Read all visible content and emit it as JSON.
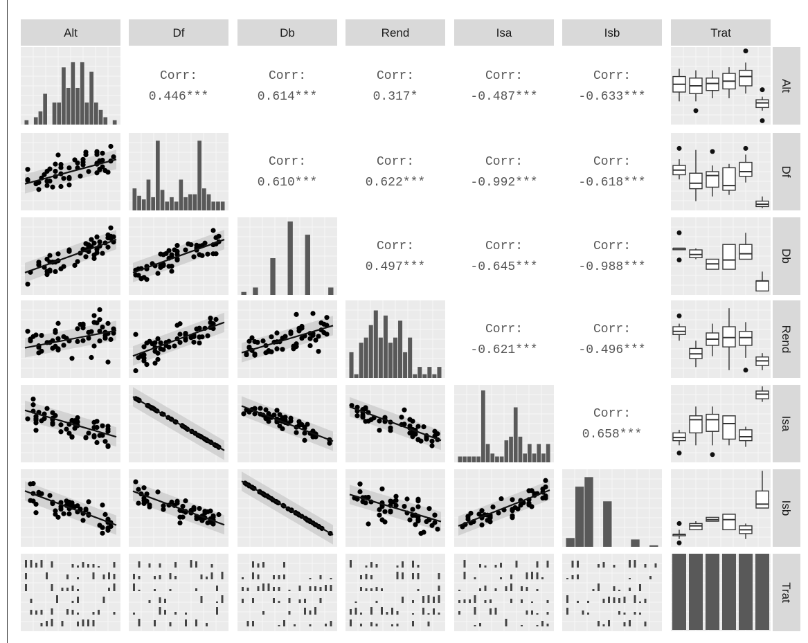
{
  "chart_data": {
    "type": "scatter",
    "layout": "pairs-matrix",
    "variables": [
      "Alt",
      "Df",
      "Db",
      "Rend",
      "Isa",
      "Isb",
      "Trat"
    ],
    "correlation_prefix": "Corr:",
    "correlations": [
      {
        "row": "Alt",
        "col": "Df",
        "value": "0.446***"
      },
      {
        "row": "Alt",
        "col": "Db",
        "value": "0.614***"
      },
      {
        "row": "Alt",
        "col": "Rend",
        "value": "0.317*"
      },
      {
        "row": "Alt",
        "col": "Isa",
        "value": "-0.487***"
      },
      {
        "row": "Alt",
        "col": "Isb",
        "value": "-0.633***"
      },
      {
        "row": "Df",
        "col": "Db",
        "value": "0.610***"
      },
      {
        "row": "Df",
        "col": "Rend",
        "value": "0.622***"
      },
      {
        "row": "Df",
        "col": "Isa",
        "value": "-0.992***"
      },
      {
        "row": "Df",
        "col": "Isb",
        "value": "-0.618***"
      },
      {
        "row": "Db",
        "col": "Rend",
        "value": "0.497***"
      },
      {
        "row": "Db",
        "col": "Isa",
        "value": "-0.645***"
      },
      {
        "row": "Db",
        "col": "Isb",
        "value": "-0.988***"
      },
      {
        "row": "Rend",
        "col": "Isa",
        "value": "-0.621***"
      },
      {
        "row": "Rend",
        "col": "Isb",
        "value": "-0.496***"
      },
      {
        "row": "Isa",
        "col": "Isb",
        "value": "0.658***"
      }
    ],
    "histograms": {
      "Alt": [
        0.06,
        0,
        0.1,
        0.18,
        0.42,
        0,
        0.3,
        0.3,
        0.78,
        0.5,
        0.85,
        0.5,
        0.85,
        0.3,
        0.72,
        0.3,
        0.2,
        0.1,
        0,
        0.06
      ],
      "Df": [
        0.3,
        0.2,
        0.15,
        0.42,
        0.18,
        0.95,
        0.28,
        0.12,
        0.18,
        0.12,
        0.42,
        0.18,
        0.22,
        0.22,
        0.95,
        0.3,
        0.22,
        0.12,
        0.12,
        0.12
      ],
      "Db": [
        0.04,
        0,
        0.1,
        0,
        0,
        0.5,
        0,
        0,
        1.0,
        0,
        0,
        0.82,
        0,
        0,
        0,
        0.1
      ],
      "Rend": [
        0.35,
        0.05,
        0.48,
        0.55,
        0.72,
        0.92,
        0.55,
        0.85,
        0.48,
        0.55,
        0.78,
        0.35,
        0.55,
        0.05,
        0.15,
        0.05,
        0.15,
        0.05,
        0.15
      ],
      "Isa": [
        0.08,
        0.08,
        0.08,
        0.08,
        0.08,
        0.98,
        0.25,
        0.12,
        0.08,
        0.08,
        0.3,
        0.35,
        0.75,
        0.35,
        0.12,
        0.25,
        0.12,
        0.25,
        0.12,
        0.25
      ],
      "Isb": [
        0.12,
        0.82,
        0.95,
        0,
        0.62,
        0,
        0,
        0.1,
        0,
        0.02
      ]
    },
    "scatter_panels": [
      {
        "row": "Df",
        "col": "Alt",
        "slope": 0.45
      },
      {
        "row": "Db",
        "col": "Alt",
        "slope": 0.61
      },
      {
        "row": "Db",
        "col": "Df",
        "slope": 0.61
      },
      {
        "row": "Rend",
        "col": "Alt",
        "slope": 0.32
      },
      {
        "row": "Rend",
        "col": "Df",
        "slope": 0.62
      },
      {
        "row": "Rend",
        "col": "Db",
        "slope": 0.5
      },
      {
        "row": "Isa",
        "col": "Alt",
        "slope": -0.49
      },
      {
        "row": "Isa",
        "col": "Df",
        "slope": -0.99
      },
      {
        "row": "Isa",
        "col": "Db",
        "slope": -0.65
      },
      {
        "row": "Isa",
        "col": "Rend",
        "slope": -0.62
      },
      {
        "row": "Isb",
        "col": "Alt",
        "slope": -0.63
      },
      {
        "row": "Isb",
        "col": "Df",
        "slope": -0.62
      },
      {
        "row": "Isb",
        "col": "Db",
        "slope": -0.99
      },
      {
        "row": "Isb",
        "col": "Rend",
        "slope": -0.5
      },
      {
        "row": "Isb",
        "col": "Isa",
        "slope": 0.66
      }
    ],
    "boxplots": {
      "Alt": [
        {
          "q1": 0.42,
          "med": 0.52,
          "q3": 0.62,
          "lo": 0.3,
          "hi": 0.72,
          "out": []
        },
        {
          "q1": 0.4,
          "med": 0.5,
          "q3": 0.6,
          "lo": 0.3,
          "hi": 0.7,
          "out": [
            0.18
          ]
        },
        {
          "q1": 0.44,
          "med": 0.53,
          "q3": 0.6,
          "lo": 0.34,
          "hi": 0.7,
          "out": []
        },
        {
          "q1": 0.46,
          "med": 0.56,
          "q3": 0.66,
          "lo": 0.34,
          "hi": 0.74,
          "out": []
        },
        {
          "q1": 0.5,
          "med": 0.62,
          "q3": 0.7,
          "lo": 0.4,
          "hi": 0.8,
          "out": [
            0.95
          ]
        },
        {
          "q1": 0.22,
          "med": 0.28,
          "q3": 0.32,
          "lo": 0.18,
          "hi": 0.36,
          "out": [
            0.45,
            0.05
          ]
        }
      ],
      "Df": [
        {
          "q1": 0.46,
          "med": 0.52,
          "q3": 0.58,
          "lo": 0.4,
          "hi": 0.66,
          "out": [
            0.8
          ]
        },
        {
          "q1": 0.28,
          "med": 0.35,
          "q3": 0.48,
          "lo": 0.12,
          "hi": 0.78,
          "out": []
        },
        {
          "q1": 0.3,
          "med": 0.45,
          "q3": 0.5,
          "lo": 0.18,
          "hi": 0.58,
          "out": [
            0.76
          ]
        },
        {
          "q1": 0.26,
          "med": 0.32,
          "q3": 0.55,
          "lo": 0.2,
          "hi": 0.6,
          "out": []
        },
        {
          "q1": 0.44,
          "med": 0.5,
          "q3": 0.62,
          "lo": 0.36,
          "hi": 0.72,
          "out": [
            0.8
          ]
        },
        {
          "q1": 0.05,
          "med": 0.08,
          "q3": 0.12,
          "lo": 0.03,
          "hi": 0.18,
          "out": []
        }
      ],
      "Db": [
        {
          "q1": 0.6,
          "med": 0.6,
          "q3": 0.6,
          "lo": 0.6,
          "hi": 0.6,
          "out": [
            0.8,
            0.45
          ]
        },
        {
          "q1": 0.48,
          "med": 0.52,
          "q3": 0.58,
          "lo": 0.46,
          "hi": 0.6,
          "out": []
        },
        {
          "q1": 0.33,
          "med": 0.4,
          "q3": 0.46,
          "lo": 0.33,
          "hi": 0.46,
          "out": []
        },
        {
          "q1": 0.33,
          "med": 0.45,
          "q3": 0.65,
          "lo": 0.33,
          "hi": 0.65,
          "out": []
        },
        {
          "q1": 0.46,
          "med": 0.53,
          "q3": 0.65,
          "lo": 0.46,
          "hi": 0.8,
          "out": []
        },
        {
          "q1": 0.05,
          "med": 0.18,
          "q3": 0.18,
          "lo": 0.05,
          "hi": 0.3,
          "out": []
        }
      ],
      "Rend": [
        {
          "q1": 0.56,
          "med": 0.6,
          "q3": 0.66,
          "lo": 0.48,
          "hi": 0.7,
          "out": [
            0.8
          ]
        },
        {
          "q1": 0.25,
          "med": 0.31,
          "q3": 0.38,
          "lo": 0.14,
          "hi": 0.48,
          "out": []
        },
        {
          "q1": 0.42,
          "med": 0.5,
          "q3": 0.58,
          "lo": 0.28,
          "hi": 0.7,
          "out": []
        },
        {
          "q1": 0.4,
          "med": 0.52,
          "q3": 0.66,
          "lo": 0.1,
          "hi": 0.9,
          "out": []
        },
        {
          "q1": 0.42,
          "med": 0.52,
          "q3": 0.6,
          "lo": 0.26,
          "hi": 0.72,
          "out": [
            0.1
          ]
        },
        {
          "q1": 0.16,
          "med": 0.22,
          "q3": 0.27,
          "lo": 0.1,
          "hi": 0.32,
          "out": []
        }
      ],
      "Isa": [
        {
          "q1": 0.28,
          "med": 0.32,
          "q3": 0.38,
          "lo": 0.22,
          "hi": 0.42,
          "out": [
            0.12
          ]
        },
        {
          "q1": 0.38,
          "med": 0.55,
          "q3": 0.6,
          "lo": 0.22,
          "hi": 0.72,
          "out": []
        },
        {
          "q1": 0.4,
          "med": 0.55,
          "q3": 0.62,
          "lo": 0.22,
          "hi": 0.72,
          "out": [
            0.1
          ]
        },
        {
          "q1": 0.3,
          "med": 0.5,
          "q3": 0.6,
          "lo": 0.22,
          "hi": 0.6,
          "out": []
        },
        {
          "q1": 0.28,
          "med": 0.33,
          "q3": 0.42,
          "lo": 0.2,
          "hi": 0.46,
          "out": []
        },
        {
          "q1": 0.82,
          "med": 0.88,
          "q3": 0.92,
          "lo": 0.78,
          "hi": 0.98,
          "out": []
        }
      ],
      "Isb": [
        {
          "q1": 0.16,
          "med": 0.16,
          "q3": 0.16,
          "lo": 0.1,
          "hi": 0.22,
          "out": [
            0.05,
            0.3
          ]
        },
        {
          "q1": 0.22,
          "med": 0.27,
          "q3": 0.3,
          "lo": 0.22,
          "hi": 0.33,
          "out": []
        },
        {
          "q1": 0.33,
          "med": 0.35,
          "q3": 0.38,
          "lo": 0.33,
          "hi": 0.38,
          "out": []
        },
        {
          "q1": 0.22,
          "med": 0.35,
          "q3": 0.42,
          "lo": 0.22,
          "hi": 0.42,
          "out": []
        },
        {
          "q1": 0.17,
          "med": 0.22,
          "q3": 0.27,
          "lo": 0.1,
          "hi": 0.3,
          "out": []
        },
        {
          "q1": 0.5,
          "med": 0.55,
          "q3": 0.72,
          "lo": 0.5,
          "hi": 0.98,
          "out": []
        }
      ]
    },
    "trat_counts": [
      1,
      1,
      1,
      1,
      1,
      1
    ]
  }
}
